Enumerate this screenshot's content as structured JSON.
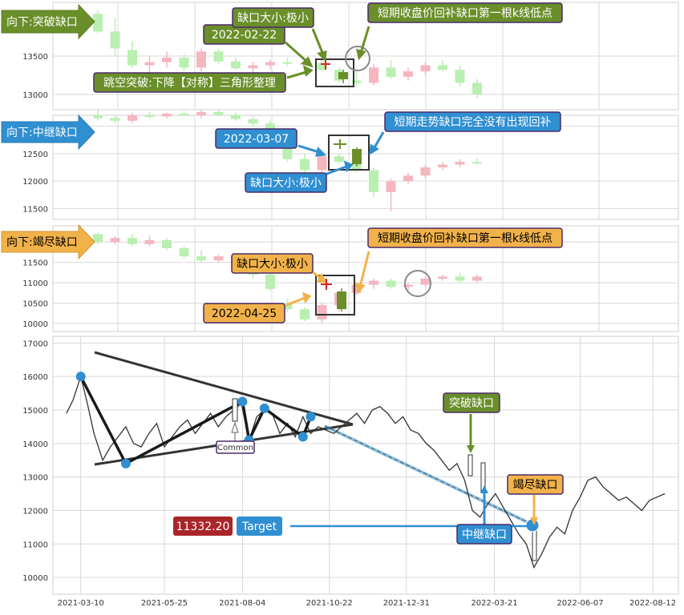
{
  "colors": {
    "green_tag": "#6a8f2a",
    "blue_tag": "#2f8fd0",
    "orange_tag": "#f2b24a",
    "up_candle": "#f4b6c0",
    "down_candle": "#b9efb0",
    "gap_up": "#d62728",
    "gap_down": "#6a8f2a",
    "price_line": "#333333",
    "pivot": "#2f8fd0",
    "target_red": "#a8262a",
    "target_blue": "#2f8fd0",
    "grid": "#d9d9d9"
  },
  "panels": [
    {
      "key": "breakaway",
      "tag": "向下:突破缺口",
      "tag_color": "green",
      "ylim": [
        12800,
        14200
      ],
      "yticks": [
        13000,
        13500
      ],
      "callouts": {
        "date": "2022-02-22",
        "gap_size": "缺口大小:极小",
        "note": "短期收盘价回补缺口第一根k线低点",
        "pattern": "跳空突破:下降【对称】三角形整理"
      },
      "candles": [
        {
          "o": 14050,
          "h": 14100,
          "l": 13800,
          "c": 13820
        },
        {
          "o": 13820,
          "h": 14000,
          "l": 13500,
          "c": 13600
        },
        {
          "o": 13580,
          "h": 13700,
          "l": 13350,
          "c": 13380
        },
        {
          "o": 13380,
          "h": 13500,
          "l": 13250,
          "c": 13420
        },
        {
          "o": 13420,
          "h": 13560,
          "l": 13350,
          "c": 13480
        },
        {
          "o": 13480,
          "h": 13520,
          "l": 13300,
          "c": 13350
        },
        {
          "o": 13350,
          "h": 13600,
          "l": 13300,
          "c": 13560
        },
        {
          "o": 13560,
          "h": 13600,
          "l": 13400,
          "c": 13430
        },
        {
          "o": 13430,
          "h": 13480,
          "l": 13320,
          "c": 13340
        },
        {
          "o": 13340,
          "h": 13420,
          "l": 13280,
          "c": 13380
        },
        {
          "o": 13380,
          "h": 13450,
          "l": 13330,
          "c": 13420
        },
        {
          "o": 13420,
          "h": 13480,
          "l": 13370,
          "c": 13400
        },
        {
          "o": 13400,
          "h": 13460,
          "l": 13380,
          "c": 13410
        },
        {
          "o": 13410,
          "h": 13450,
          "l": 13300,
          "c": 13320
        },
        {
          "o": 13320,
          "h": 13350,
          "l": 13150,
          "c": 13180
        },
        {
          "o": 13180,
          "h": 13300,
          "l": 13100,
          "c": 13150
        },
        {
          "o": 13150,
          "h": 13400,
          "l": 13120,
          "c": 13350
        },
        {
          "o": 13350,
          "h": 13450,
          "l": 13200,
          "c": 13230
        },
        {
          "o": 13230,
          "h": 13350,
          "l": 13180,
          "c": 13300
        },
        {
          "o": 13300,
          "h": 13420,
          "l": 13250,
          "c": 13380
        },
        {
          "o": 13380,
          "h": 13450,
          "l": 13300,
          "c": 13320
        },
        {
          "o": 13320,
          "h": 13380,
          "l": 13100,
          "c": 13150
        },
        {
          "o": 13150,
          "h": 13200,
          "l": 12950,
          "c": 13000
        }
      ]
    },
    {
      "key": "runaway",
      "tag": "向下:中继缺口",
      "tag_color": "blue",
      "ylim": [
        11300,
        13200
      ],
      "yticks": [
        11500,
        12000,
        12500,
        13000
      ],
      "callouts": {
        "date": "2022-03-07",
        "gap_size": "缺口大小:极小",
        "note": "短期走势缺口完全没有出现回补"
      },
      "candles": [
        {
          "o": 13200,
          "h": 13300,
          "l": 13100,
          "c": 13150
        },
        {
          "o": 13150,
          "h": 13200,
          "l": 13050,
          "c": 13100
        },
        {
          "o": 13100,
          "h": 13250,
          "l": 13050,
          "c": 13200
        },
        {
          "o": 13200,
          "h": 13260,
          "l": 13150,
          "c": 13180
        },
        {
          "o": 13180,
          "h": 13250,
          "l": 13150,
          "c": 13230
        },
        {
          "o": 13230,
          "h": 13280,
          "l": 13180,
          "c": 13200
        },
        {
          "o": 13200,
          "h": 13300,
          "l": 13150,
          "c": 13260
        },
        {
          "o": 13260,
          "h": 13300,
          "l": 13180,
          "c": 13210
        },
        {
          "o": 13210,
          "h": 13260,
          "l": 13100,
          "c": 13130
        },
        {
          "o": 13130,
          "h": 13200,
          "l": 13000,
          "c": 13050
        },
        {
          "o": 13050,
          "h": 13100,
          "l": 12900,
          "c": 12950
        },
        {
          "o": 12700,
          "h": 12800,
          "l": 12350,
          "c": 12400
        },
        {
          "o": 12400,
          "h": 12500,
          "l": 11800,
          "c": 12200
        },
        {
          "o": 12200,
          "h": 12500,
          "l": 12150,
          "c": 12450
        },
        {
          "o": 12450,
          "h": 12500,
          "l": 12300,
          "c": 12350
        },
        {
          "o": 12350,
          "h": 12400,
          "l": 12150,
          "c": 12200
        },
        {
          "o": 12200,
          "h": 12250,
          "l": 11700,
          "c": 11800
        },
        {
          "o": 11800,
          "h": 12050,
          "l": 11450,
          "c": 12000
        },
        {
          "o": 12000,
          "h": 12150,
          "l": 11950,
          "c": 12100
        },
        {
          "o": 12100,
          "h": 12300,
          "l": 12050,
          "c": 12250
        },
        {
          "o": 12250,
          "h": 12350,
          "l": 12200,
          "c": 12300
        },
        {
          "o": 12300,
          "h": 12400,
          "l": 12250,
          "c": 12350
        },
        {
          "o": 12350,
          "h": 12420,
          "l": 12300,
          "c": 12330
        }
      ]
    },
    {
      "key": "exhaustion",
      "tag": "向下:竭尽缺口",
      "tag_color": "orange",
      "ylim": [
        9800,
        12400
      ],
      "yticks": [
        10000,
        10500,
        11000,
        11500,
        12000
      ],
      "callouts": {
        "date": "2022-04-25",
        "gap_size": "缺口大小:极小",
        "note": "短期收盘价回补缺口第一根k线低点"
      },
      "candles": [
        {
          "o": 12200,
          "h": 12250,
          "l": 11950,
          "c": 12000
        },
        {
          "o": 12000,
          "h": 12150,
          "l": 11950,
          "c": 12100
        },
        {
          "o": 12100,
          "h": 12200,
          "l": 11900,
          "c": 11950
        },
        {
          "o": 11950,
          "h": 12150,
          "l": 11900,
          "c": 12050
        },
        {
          "o": 12050,
          "h": 12100,
          "l": 11800,
          "c": 11850
        },
        {
          "o": 11850,
          "h": 11900,
          "l": 11600,
          "c": 11650
        },
        {
          "o": 11650,
          "h": 11800,
          "l": 11500,
          "c": 11550
        },
        {
          "o": 11550,
          "h": 11700,
          "l": 11500,
          "c": 11650
        },
        {
          "o": 11650,
          "h": 11700,
          "l": 11450,
          "c": 11480
        },
        {
          "o": 11480,
          "h": 11550,
          "l": 11100,
          "c": 11200
        },
        {
          "o": 11200,
          "h": 11300,
          "l": 10800,
          "c": 10850
        },
        {
          "o": 10500,
          "h": 10600,
          "l": 10300,
          "c": 10350
        },
        {
          "o": 10350,
          "h": 10400,
          "l": 10050,
          "c": 10100
        },
        {
          "o": 10100,
          "h": 10500,
          "l": 10000,
          "c": 10450
        },
        {
          "o": 10450,
          "h": 10800,
          "l": 10300,
          "c": 10750
        },
        {
          "o": 10750,
          "h": 11000,
          "l": 10700,
          "c": 10950
        },
        {
          "o": 10950,
          "h": 11100,
          "l": 10850,
          "c": 11050
        },
        {
          "o": 11050,
          "h": 11100,
          "l": 10850,
          "c": 10900
        },
        {
          "o": 10900,
          "h": 11000,
          "l": 10800,
          "c": 10950
        },
        {
          "o": 10950,
          "h": 11150,
          "l": 10900,
          "c": 11100
        },
        {
          "o": 11100,
          "h": 11200,
          "l": 11050,
          "c": 11150
        },
        {
          "o": 11150,
          "h": 11250,
          "l": 11000,
          "c": 11050
        },
        {
          "o": 11050,
          "h": 11200,
          "l": 11000,
          "c": 11150
        }
      ]
    }
  ],
  "chart_data": {
    "type": "line",
    "x_ticks": [
      "2021-03-10",
      "2021-05-25",
      "2021-08-04",
      "2021-10-22",
      "2021-12-31",
      "2022-03-21",
      "2022-06-07",
      "2022-08-12"
    ],
    "ylim": [
      9500,
      17200
    ],
    "yticks": [
      10000,
      11000,
      12000,
      13000,
      14000,
      15000,
      16000,
      17000
    ],
    "x_range": [
      "2021-02-20",
      "2022-08-28"
    ],
    "series": [
      {
        "x": [
          "2021-02-25",
          "2021-03-03",
          "2021-03-10",
          "2021-03-16",
          "2021-03-22",
          "2021-03-30",
          "2021-04-06",
          "2021-04-13",
          "2021-04-20",
          "2021-04-27",
          "2021-05-04",
          "2021-05-11",
          "2021-05-18",
          "2021-05-25",
          "2021-06-01",
          "2021-06-08",
          "2021-06-15",
          "2021-06-22",
          "2021-06-29",
          "2021-07-06",
          "2021-07-13",
          "2021-07-20",
          "2021-07-27",
          "2021-08-03",
          "2021-08-10",
          "2021-08-17",
          "2021-08-24",
          "2021-08-31",
          "2021-09-07",
          "2021-09-14",
          "2021-09-21",
          "2021-09-28",
          "2021-10-05",
          "2021-10-12",
          "2021-10-19",
          "2021-10-26",
          "2021-11-02",
          "2021-11-09",
          "2021-11-16",
          "2021-11-23",
          "2021-11-30",
          "2021-12-07",
          "2021-12-14",
          "2021-12-21",
          "2021-12-28",
          "2022-01-04",
          "2022-01-11",
          "2022-01-18",
          "2022-01-25",
          "2022-02-01",
          "2022-02-08",
          "2022-02-15",
          "2022-02-22",
          "2022-03-01",
          "2022-03-08",
          "2022-03-15",
          "2022-03-22",
          "2022-03-29",
          "2022-04-05",
          "2022-04-12",
          "2022-04-19",
          "2022-04-26",
          "2022-05-03",
          "2022-05-10",
          "2022-05-17",
          "2022-05-24",
          "2022-05-31",
          "2022-06-07",
          "2022-06-14",
          "2022-06-21",
          "2022-06-28",
          "2022-07-05",
          "2022-07-12",
          "2022-07-19",
          "2022-07-26",
          "2022-08-02",
          "2022-08-09",
          "2022-08-16",
          "2022-08-23"
        ],
        "values": [
          14900,
          15300,
          16000,
          15200,
          14300,
          13500,
          13900,
          14200,
          14500,
          14000,
          13900,
          14300,
          14600,
          13900,
          14200,
          14500,
          14700,
          14300,
          14600,
          14900,
          14500,
          14800,
          15000,
          15200,
          14100,
          14800,
          15000,
          14900,
          14300,
          14600,
          14200,
          14800,
          14300,
          14500,
          14400,
          14300,
          14500,
          14700,
          14900,
          14600,
          15000,
          15100,
          14900,
          14600,
          14800,
          14400,
          14300,
          14000,
          13800,
          13500,
          13200,
          13400,
          12900,
          12000,
          11800,
          12200,
          12500,
          12100,
          11700,
          11300,
          11000,
          10300,
          10700,
          11200,
          11500,
          11300,
          12000,
          12400,
          12900,
          13000,
          12700,
          12500,
          12300,
          12400,
          12200,
          12000,
          12300,
          12400,
          12500
        ]
      }
    ],
    "pivots": [
      {
        "x": "2021-03-10",
        "y": 16000
      },
      {
        "x": "2021-04-20",
        "y": 13400
      },
      {
        "x": "2021-08-04",
        "y": 15250
      },
      {
        "x": "2021-08-10",
        "y": 14100
      },
      {
        "x": "2021-08-24",
        "y": 15050
      },
      {
        "x": "2021-09-28",
        "y": 14200
      },
      {
        "x": "2021-10-05",
        "y": 14800
      }
    ],
    "annotations": {
      "common_label": "Common",
      "breakaway_label": "突破缺口",
      "runaway_label": "中继缺口",
      "exhaustion_label": "竭尽缺口",
      "target_value": "11332.20",
      "target_label": "Target"
    }
  }
}
